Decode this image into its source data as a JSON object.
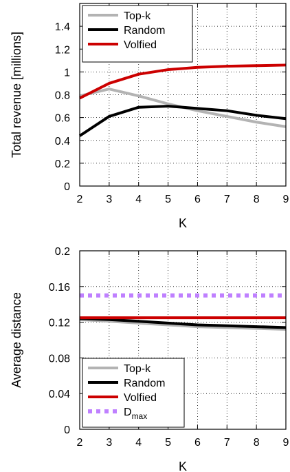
{
  "chart_data": [
    {
      "type": "line",
      "xlabel": "K",
      "ylabel": "Total revenue [millions]",
      "x": [
        2,
        3,
        4,
        5,
        6,
        7,
        8,
        9
      ],
      "xlim": [
        2,
        9
      ],
      "ylim": [
        0,
        1.6
      ],
      "xticks": [
        "2",
        "3",
        "4",
        "5",
        "6",
        "7",
        "8",
        "9"
      ],
      "yticks": [
        {
          "value": 0,
          "label": "0"
        },
        {
          "value": 0.2,
          "label": "0.2"
        },
        {
          "value": 0.4,
          "label": "0.4"
        },
        {
          "value": 0.6,
          "label": "0.6"
        },
        {
          "value": 0.8,
          "label": "0.8"
        },
        {
          "value": 1.0,
          "label": "1"
        },
        {
          "value": 1.2,
          "label": "1.2"
        },
        {
          "value": 1.4,
          "label": "1.4"
        }
      ],
      "grid": true,
      "legend_position": "top-left",
      "series": [
        {
          "name": "Top-k",
          "color": "#b3b3b3",
          "style": "solid",
          "values": [
            0.79,
            0.85,
            0.79,
            0.72,
            0.66,
            0.61,
            0.56,
            0.52
          ]
        },
        {
          "name": "Random",
          "color": "#000000",
          "style": "solid",
          "values": [
            0.44,
            0.61,
            0.69,
            0.7,
            0.68,
            0.66,
            0.62,
            0.59
          ]
        },
        {
          "name": "Volfied",
          "color": "#cc0000",
          "style": "solid",
          "values": [
            0.77,
            0.9,
            0.98,
            1.02,
            1.04,
            1.05,
            1.055,
            1.06
          ]
        }
      ]
    },
    {
      "type": "line",
      "xlabel": "K",
      "ylabel": "Average distance",
      "x": [
        2,
        3,
        4,
        5,
        6,
        7,
        8,
        9
      ],
      "xlim": [
        2,
        9
      ],
      "ylim": [
        0,
        0.2
      ],
      "xticks": [
        "2",
        "3",
        "4",
        "5",
        "6",
        "7",
        "8",
        "9"
      ],
      "yticks": [
        {
          "value": 0,
          "label": "0"
        },
        {
          "value": 0.04,
          "label": "0.04"
        },
        {
          "value": 0.08,
          "label": "0.08"
        },
        {
          "value": 0.12,
          "label": "0.12"
        },
        {
          "value": 0.16,
          "label": "0.16"
        },
        {
          "value": 0.2,
          "label": "0.2"
        }
      ],
      "grid": true,
      "legend_position": "bottom-left",
      "series": [
        {
          "name": "Top-k",
          "color": "#b3b3b3",
          "style": "solid",
          "values": [
            0.123,
            0.121,
            0.119,
            0.117,
            0.115,
            0.114,
            0.113,
            0.112
          ]
        },
        {
          "name": "Random",
          "color": "#000000",
          "style": "solid",
          "values": [
            0.124,
            0.123,
            0.121,
            0.119,
            0.117,
            0.116,
            0.115,
            0.114
          ]
        },
        {
          "name": "Volfied",
          "color": "#cc0000",
          "style": "solid",
          "values": [
            0.125,
            0.125,
            0.125,
            0.125,
            0.125,
            0.125,
            0.125,
            0.125
          ]
        },
        {
          "name": "D",
          "subscript": "max",
          "color": "#bf80ff",
          "style": "dotted",
          "values": [
            0.15,
            0.15,
            0.15,
            0.15,
            0.15,
            0.15,
            0.15,
            0.15
          ]
        }
      ]
    }
  ]
}
